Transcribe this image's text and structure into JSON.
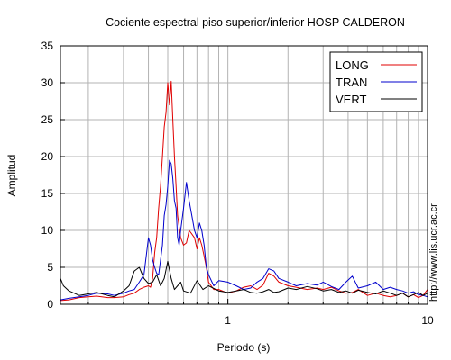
{
  "side_note": "http://www.lis.ucr.ac.cr",
  "chart_data": {
    "type": "line",
    "title": "Cociente espectral piso superior/inferior  HOSP CALDERON",
    "xlabel": "Periodo (s)",
    "ylabel": "Amplitud",
    "x_scale": "log",
    "xlim": [
      0.145,
      10
    ],
    "ylim": [
      0,
      35
    ],
    "x_tick_labels": [
      {
        "value": 1,
        "label": "1"
      },
      {
        "value": 10,
        "label": "10"
      }
    ],
    "y_ticks": [
      0,
      5,
      10,
      15,
      20,
      25,
      30,
      35
    ],
    "grid": true,
    "legend": "top-right",
    "series": [
      {
        "name": "LONG",
        "color": "#e00000",
        "x": [
          0.145,
          0.16,
          0.18,
          0.2,
          0.22,
          0.25,
          0.27,
          0.3,
          0.32,
          0.34,
          0.36,
          0.38,
          0.4,
          0.41,
          0.42,
          0.43,
          0.44,
          0.45,
          0.46,
          0.47,
          0.48,
          0.49,
          0.5,
          0.51,
          0.52,
          0.53,
          0.54,
          0.55,
          0.56,
          0.57,
          0.58,
          0.6,
          0.62,
          0.64,
          0.66,
          0.68,
          0.7,
          0.72,
          0.74,
          0.76,
          0.78,
          0.8,
          0.85,
          0.9,
          1.0,
          1.1,
          1.2,
          1.3,
          1.4,
          1.5,
          1.6,
          1.7,
          1.8,
          2.0,
          2.2,
          2.5,
          2.8,
          3.0,
          3.3,
          3.6,
          3.9,
          4.2,
          4.5,
          5.0,
          5.5,
          6.0,
          6.5,
          7.0,
          7.5,
          8.0,
          8.5,
          9.0,
          9.5,
          10.0
        ],
        "y": [
          0.5,
          0.6,
          0.9,
          1.0,
          1.1,
          0.9,
          0.9,
          1.0,
          1.3,
          1.5,
          2.0,
          2.3,
          2.5,
          2.3,
          3.5,
          7.0,
          9.0,
          13.0,
          16.0,
          20.0,
          24.0,
          26.0,
          30.0,
          27.0,
          30.2,
          25.0,
          20.0,
          16.0,
          12.0,
          10.5,
          9.0,
          8.0,
          8.3,
          10.0,
          9.5,
          9.0,
          7.5,
          9.0,
          8.0,
          6.5,
          5.0,
          3.0,
          2.0,
          2.0,
          1.5,
          1.8,
          2.3,
          2.5,
          2.0,
          2.6,
          4.2,
          3.8,
          3.0,
          2.5,
          2.3,
          2.0,
          2.2,
          2.0,
          2.3,
          1.8,
          1.5,
          1.6,
          2.0,
          1.2,
          1.5,
          1.2,
          1.0,
          1.2,
          1.5,
          1.0,
          1.3,
          0.9,
          1.2,
          2.0
        ]
      },
      {
        "name": "TRAN",
        "color": "#0000cc",
        "x": [
          0.145,
          0.16,
          0.18,
          0.2,
          0.22,
          0.25,
          0.27,
          0.3,
          0.32,
          0.34,
          0.36,
          0.38,
          0.4,
          0.41,
          0.42,
          0.43,
          0.44,
          0.45,
          0.46,
          0.47,
          0.48,
          0.49,
          0.5,
          0.51,
          0.52,
          0.53,
          0.54,
          0.55,
          0.56,
          0.57,
          0.58,
          0.6,
          0.62,
          0.64,
          0.66,
          0.68,
          0.7,
          0.72,
          0.74,
          0.76,
          0.78,
          0.8,
          0.85,
          0.9,
          1.0,
          1.1,
          1.2,
          1.3,
          1.4,
          1.5,
          1.6,
          1.7,
          1.8,
          2.0,
          2.2,
          2.5,
          2.8,
          3.0,
          3.3,
          3.6,
          3.9,
          4.2,
          4.5,
          5.0,
          5.5,
          6.0,
          6.5,
          7.0,
          7.5,
          8.0,
          8.5,
          9.0,
          9.5,
          10.0
        ],
        "y": [
          0.6,
          0.8,
          1.0,
          1.2,
          1.5,
          1.4,
          1.2,
          1.5,
          1.8,
          2.0,
          3.0,
          4.0,
          9.0,
          8.0,
          6.0,
          5.0,
          4.2,
          4.0,
          6.0,
          8.0,
          12.0,
          13.5,
          16.0,
          19.5,
          19.0,
          17.0,
          14.0,
          13.0,
          9.0,
          8.0,
          10.0,
          13.0,
          16.5,
          14.0,
          12.0,
          10.0,
          9.0,
          11.0,
          10.0,
          8.0,
          5.0,
          4.0,
          2.5,
          3.2,
          3.0,
          2.5,
          2.0,
          2.2,
          3.0,
          3.5,
          4.8,
          4.5,
          3.5,
          3.0,
          2.5,
          2.8,
          2.6,
          3.0,
          2.4,
          2.0,
          3.0,
          3.8,
          2.2,
          2.5,
          3.0,
          2.0,
          2.3,
          2.0,
          1.8,
          1.5,
          1.7,
          1.3,
          1.2,
          1.0
        ]
      },
      {
        "name": "VERT",
        "color": "#000000",
        "x": [
          0.145,
          0.15,
          0.16,
          0.18,
          0.2,
          0.22,
          0.25,
          0.27,
          0.3,
          0.32,
          0.34,
          0.36,
          0.38,
          0.4,
          0.42,
          0.44,
          0.46,
          0.48,
          0.5,
          0.52,
          0.54,
          0.56,
          0.58,
          0.6,
          0.65,
          0.7,
          0.75,
          0.8,
          0.9,
          1.0,
          1.1,
          1.2,
          1.3,
          1.4,
          1.5,
          1.6,
          1.7,
          1.8,
          2.0,
          2.2,
          2.5,
          2.8,
          3.0,
          3.3,
          3.6,
          3.9,
          4.2,
          4.5,
          5.0,
          5.5,
          6.0,
          6.5,
          7.0,
          7.5,
          8.0,
          8.5,
          9.0,
          9.5,
          10.0
        ],
        "y": [
          3.5,
          2.5,
          1.8,
          1.2,
          1.4,
          1.6,
          1.2,
          1.0,
          1.8,
          2.5,
          4.5,
          5.0,
          3.5,
          2.8,
          3.0,
          4.0,
          2.5,
          3.5,
          5.8,
          3.5,
          2.0,
          2.5,
          3.0,
          1.8,
          1.5,
          3.2,
          2.0,
          2.5,
          1.8,
          1.6,
          1.8,
          2.0,
          1.6,
          1.5,
          1.7,
          2.0,
          1.6,
          1.7,
          2.2,
          2.0,
          2.4,
          2.1,
          1.8,
          2.0,
          1.6,
          1.8,
          1.5,
          1.9,
          1.6,
          1.4,
          1.8,
          1.5,
          1.2,
          1.5,
          1.0,
          1.3,
          1.6,
          1.2,
          1.5
        ]
      }
    ]
  }
}
